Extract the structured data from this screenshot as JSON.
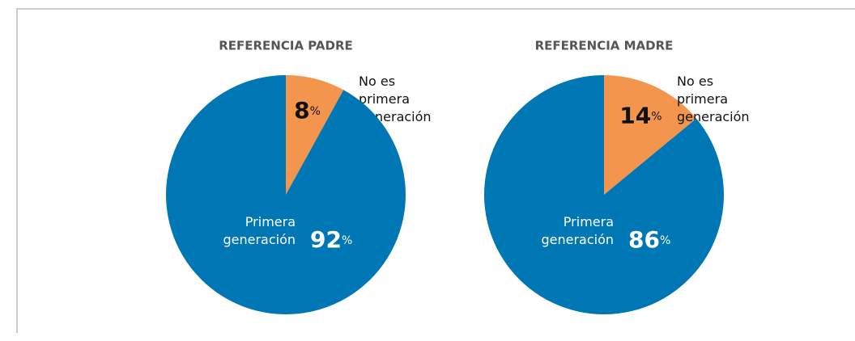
{
  "chart_data": [
    {
      "type": "pie",
      "title": "REFERENCIA PADRE",
      "categories": [
        "No es primera generación",
        "Primera generación"
      ],
      "values": [
        8,
        92
      ],
      "value_labels": [
        "8%",
        "92%"
      ],
      "colors": [
        "#f4954e",
        "#0077b5"
      ]
    },
    {
      "type": "pie",
      "title": "REFERENCIA MADRE",
      "categories": [
        "No es primera generación",
        "Primera generación"
      ],
      "values": [
        14,
        86
      ],
      "value_labels": [
        "14%",
        "86%"
      ],
      "colors": [
        "#f4954e",
        "#0077b5"
      ]
    }
  ]
}
